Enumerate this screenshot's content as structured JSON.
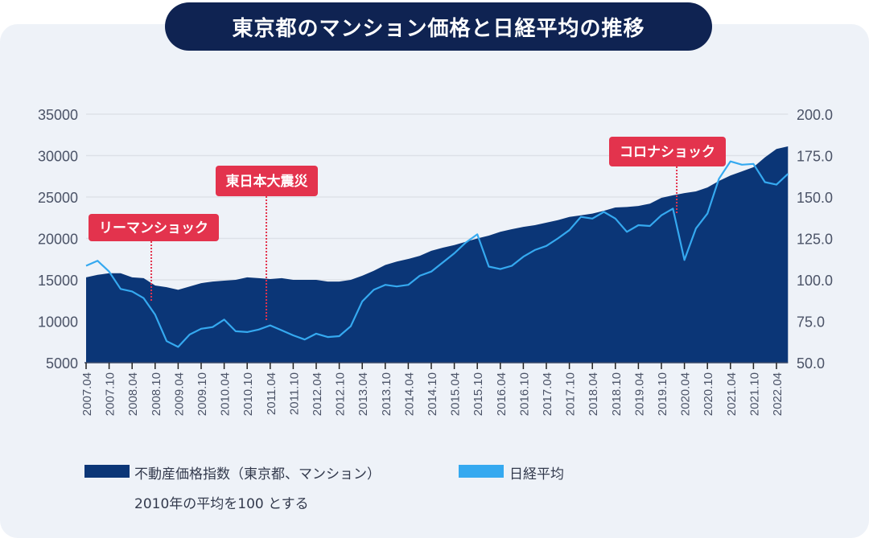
{
  "header": {
    "title": "東京都のマンション価格と日経平均の推移"
  },
  "legend": {
    "items": [
      {
        "label": "不動産価格指数（東京都、マンション）",
        "color": "#0b3677"
      },
      {
        "label": "日経平均",
        "color": "#35a9f0"
      }
    ],
    "note": "2010年の平均を100 とする"
  },
  "chart_data": {
    "type": "area+line",
    "title": "東京都のマンション価格と日経平均の推移",
    "y_left": {
      "ticks": [
        "35000",
        "30000",
        "25000",
        "20000",
        "15000",
        "10000",
        "5000"
      ],
      "range": [
        5000,
        35000
      ],
      "series": "日経平均"
    },
    "y_right": {
      "ticks": [
        "200.0",
        "175.0",
        "150.0",
        "125.0",
        "100.0",
        "75.0",
        "50.0"
      ],
      "range": [
        50,
        200
      ],
      "series": "不動産価格指数（東京都、マンション）"
    },
    "x_tick_labels": [
      "2007.04",
      "2007.10",
      "2008.04",
      "2008.10",
      "2009.04",
      "2009.10",
      "2010.04",
      "2010.10",
      "2011.04",
      "2011.10",
      "2012.04",
      "2012.10",
      "2013.04",
      "2013.10",
      "2014.04",
      "2014.10",
      "2015.04",
      "2015.10",
      "2016.04",
      "2016.10",
      "2017.04",
      "2017.10",
      "2018.04",
      "2018.10",
      "2019.04",
      "2019.10",
      "2020.04",
      "2020.10",
      "2021.04",
      "2021.10",
      "2022.04"
    ],
    "grid": true,
    "legend_position": "bottom",
    "x": [
      "2007.04",
      "2007.07",
      "2007.10",
      "2008.01",
      "2008.04",
      "2008.07",
      "2008.10",
      "2009.01",
      "2009.04",
      "2009.07",
      "2009.10",
      "2010.01",
      "2010.04",
      "2010.07",
      "2010.10",
      "2011.01",
      "2011.04",
      "2011.07",
      "2011.10",
      "2012.01",
      "2012.04",
      "2012.07",
      "2012.10",
      "2013.01",
      "2013.04",
      "2013.07",
      "2013.10",
      "2014.01",
      "2014.04",
      "2014.07",
      "2014.10",
      "2015.01",
      "2015.04",
      "2015.07",
      "2015.10",
      "2016.01",
      "2016.04",
      "2016.07",
      "2016.10",
      "2017.01",
      "2017.04",
      "2017.07",
      "2017.10",
      "2018.01",
      "2018.04",
      "2018.07",
      "2018.10",
      "2019.01",
      "2019.04",
      "2019.07",
      "2019.10",
      "2020.01",
      "2020.04",
      "2020.07",
      "2020.10",
      "2021.01",
      "2021.04",
      "2021.07",
      "2021.10",
      "2022.01",
      "2022.04",
      "2022.07"
    ],
    "series": [
      {
        "name": "不動産価格指数（東京都、マンション）",
        "axis": "right",
        "type": "area",
        "color": "#0b3677",
        "values": [
          101.5,
          103,
          104,
          104,
          101.5,
          101,
          96.6,
          95.6,
          94,
          96,
          98,
          99,
          99.5,
          100,
          101.5,
          101,
          100.5,
          101,
          100,
          100,
          100,
          99,
          99,
          100,
          102.5,
          105.5,
          109,
          111,
          112.6,
          114.5,
          117.5,
          119.4,
          121,
          123,
          125,
          126.7,
          129,
          130.6,
          132,
          133,
          134.5,
          136,
          138,
          139,
          140,
          141.7,
          143.7,
          144,
          144.6,
          146,
          149.5,
          151,
          152.4,
          153.4,
          155.8,
          159.7,
          163,
          165.5,
          168,
          174,
          179,
          180.6
        ]
      },
      {
        "name": "日経平均",
        "axis": "left",
        "type": "line",
        "color": "#35a9f0",
        "values": [
          16700,
          17300,
          16000,
          13900,
          13600,
          12800,
          10800,
          7600,
          6900,
          8400,
          9100,
          9300,
          10200,
          8800,
          8700,
          9000,
          9500,
          8900,
          8300,
          7800,
          8500,
          8100,
          8200,
          9400,
          12400,
          13800,
          14400,
          14200,
          14400,
          15500,
          16000,
          17100,
          18200,
          19500,
          20500,
          16600,
          16300,
          16700,
          17800,
          18600,
          19100,
          20000,
          21000,
          22600,
          22400,
          23200,
          22400,
          20800,
          21600,
          21500,
          22800,
          23600,
          17400,
          21200,
          23000,
          27200,
          29300,
          28900,
          29000,
          26800,
          26500,
          27800
        ]
      }
    ],
    "annotations": [
      {
        "label": "リーマンショック",
        "x": "2008.09",
        "color": "#e3334d"
      },
      {
        "label": "東日本大震災",
        "x": "2011.03",
        "color": "#e3334d"
      },
      {
        "label": "コロナショック",
        "x": "2020.02",
        "color": "#e3334d"
      }
    ]
  }
}
